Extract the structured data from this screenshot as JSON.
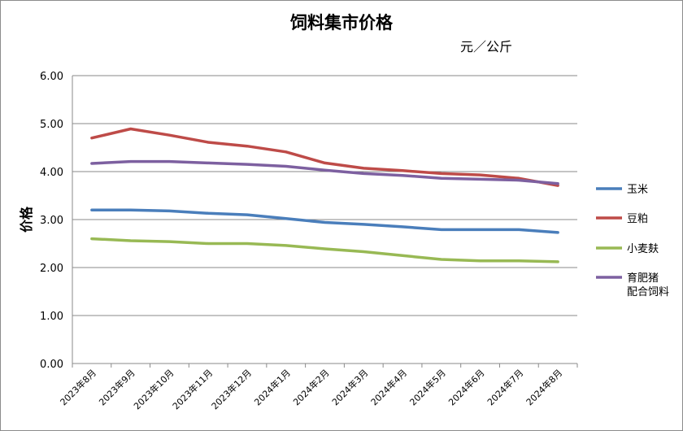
{
  "chart_data": {
    "type": "line",
    "title": "饲料集市价格",
    "unit": "元／公斤",
    "ylabel": "价格",
    "xlabel": "",
    "ylim": [
      0,
      6
    ],
    "yticks": [
      "0.00",
      "1.00",
      "2.00",
      "3.00",
      "4.00",
      "5.00",
      "6.00"
    ],
    "grid": true,
    "legend_position": "right",
    "categories": [
      "2023年8月",
      "2023年9月",
      "2023年10月",
      "2023年11月",
      "2023年12月",
      "2024年1月",
      "2024年2月",
      "2024年3月",
      "2024年4月",
      "2024年5月",
      "2024年6月",
      "2024年7月",
      "2024年8月"
    ],
    "series": [
      {
        "name": "玉米",
        "color": "#4a7ebb",
        "values": [
          3.2,
          3.2,
          3.18,
          3.13,
          3.1,
          3.02,
          2.94,
          2.9,
          2.85,
          2.79,
          2.79,
          2.79,
          2.73
        ]
      },
      {
        "name": "豆粕",
        "color": "#be4b48",
        "values": [
          4.7,
          4.89,
          4.76,
          4.61,
          4.53,
          4.41,
          4.18,
          4.07,
          4.02,
          3.96,
          3.93,
          3.86,
          3.71
        ]
      },
      {
        "name": "小麦麸",
        "color": "#98b954",
        "values": [
          2.6,
          2.56,
          2.54,
          2.5,
          2.5,
          2.46,
          2.39,
          2.33,
          2.25,
          2.17,
          2.14,
          2.14,
          2.12
        ]
      },
      {
        "name": "育肥猪配合饲料",
        "legend_lines": [
          "育肥猪",
          "配合饲料"
        ],
        "color": "#7d60a0",
        "values": [
          4.17,
          4.21,
          4.21,
          4.18,
          4.15,
          4.11,
          4.03,
          3.96,
          3.92,
          3.86,
          3.84,
          3.82,
          3.75
        ]
      }
    ]
  }
}
